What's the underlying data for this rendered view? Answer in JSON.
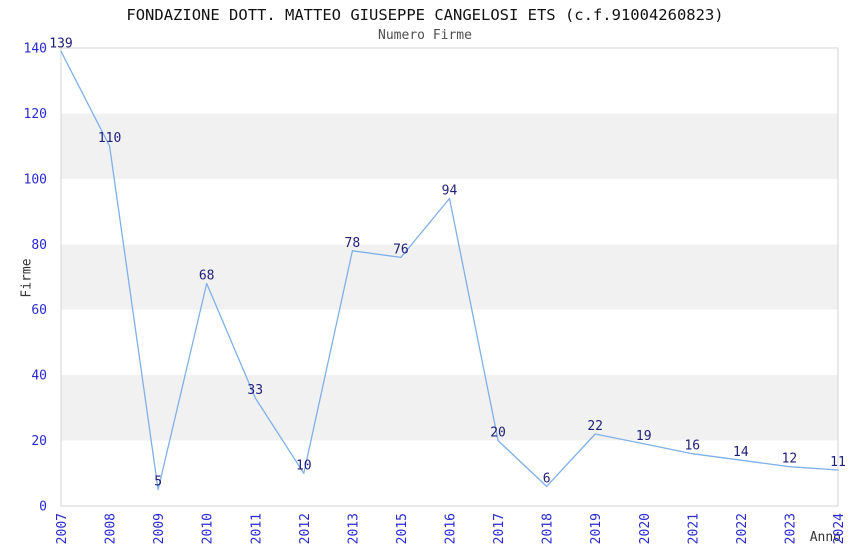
{
  "chart_data": {
    "type": "line",
    "title": "FONDAZIONE DOTT. MATTEO GIUSEPPE CANGELOSI ETS (c.f.91004260823)",
    "subtitle": "Numero Firme",
    "xlabel": "Anno",
    "ylabel": "Firme",
    "categories": [
      "2007",
      "2008",
      "2009",
      "2010",
      "2011",
      "2012",
      "2013",
      "2015",
      "2016",
      "2017",
      "2018",
      "2019",
      "2020",
      "2021",
      "2022",
      "2023",
      "2024"
    ],
    "series": [
      {
        "name": "Numero Firme",
        "values": [
          139,
          110,
          5,
          68,
          33,
          10,
          78,
          76,
          94,
          20,
          6,
          22,
          19,
          16,
          14,
          12,
          11
        ]
      }
    ],
    "ylim": [
      0,
      140
    ],
    "yticks": [
      0,
      20,
      40,
      60,
      80,
      100,
      120,
      140
    ],
    "shaded_bands": [
      [
        20,
        40
      ],
      [
        60,
        80
      ],
      [
        100,
        120
      ]
    ],
    "grid": "alternating-horizontal-bands",
    "legend_position": "none",
    "point_labels_visible": true,
    "x_tick_rotation_deg": -90,
    "colors": {
      "line": "#7fb0e8",
      "tick_label": "#2a2ace",
      "point_label": "#1e1e78",
      "band_fill": "#f1f1f1",
      "plot_border": "#d4d4d4",
      "title": "#111111",
      "subtitle": "#4f4f4f",
      "axis_label": "#333333",
      "background": "#ffffff"
    }
  }
}
